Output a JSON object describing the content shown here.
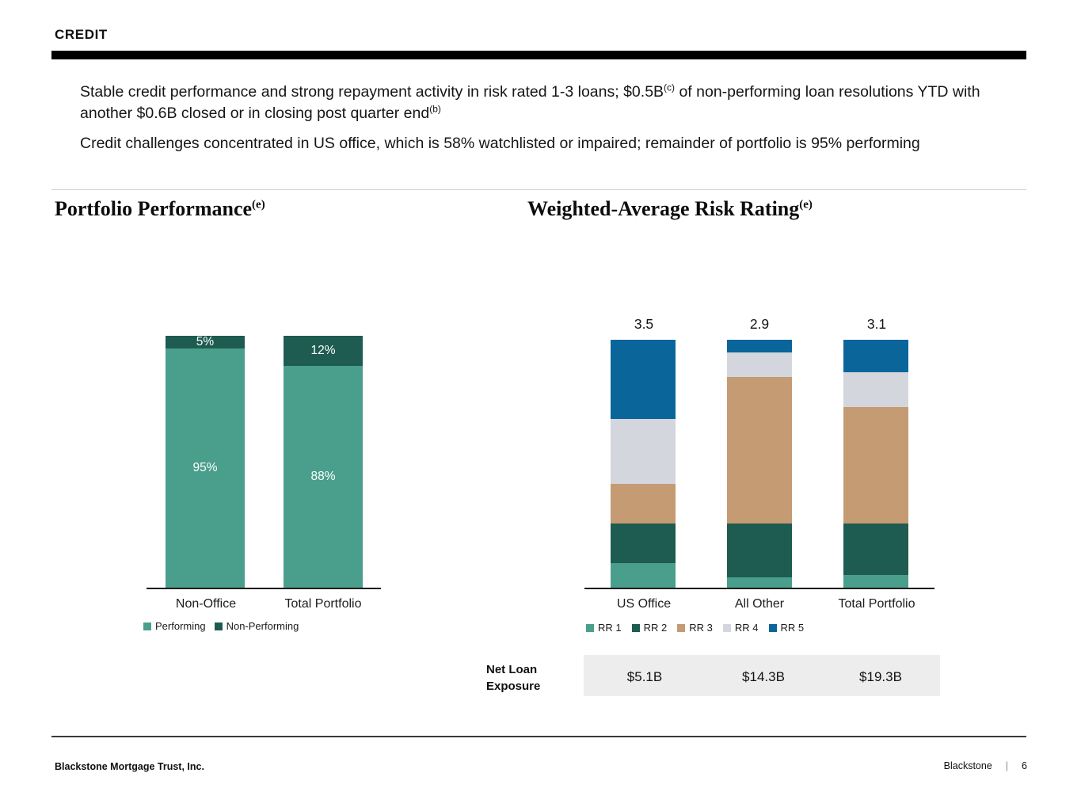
{
  "header": {
    "title": "CREDIT"
  },
  "accent_colors": {
    "bullet_square": "#AE582F",
    "teal_medium": "#4A9F8C",
    "teal_dark": "#1E5B51",
    "tan": "#C49B72",
    "gray_light": "#D3D6DC",
    "blue": "#0A659A",
    "net_loan_box_bg": "#EDEDED"
  },
  "bullets": [
    {
      "parts": [
        {
          "text": "Stable credit performance and strong repayment activity in risk rated 1-3 loans; $0.5B"
        },
        {
          "text": "(c)",
          "sup": true
        },
        {
          "text": " of non-performing loan resolutions YTD with another $0.6B closed or in closing post quarter end"
        },
        {
          "text": "(b)",
          "sup": true
        }
      ]
    },
    {
      "parts": [
        {
          "text": "Credit challenges concentrated in US office, which is 58% watchlisted or impaired; remainder of portfolio is 95% performing"
        }
      ]
    }
  ],
  "sections": {
    "left_title": "Portfolio Performance",
    "left_title_sup": "(e)",
    "right_title": "Weighted-Average Risk Rating",
    "right_title_sup": "(e)"
  },
  "chart_data": [
    {
      "type": "bar",
      "subtype": "stacked-100-percent",
      "title": "Portfolio Performance",
      "categories": [
        "Non-Office",
        "Total Portfolio"
      ],
      "series": [
        {
          "name": "Performing",
          "color": "#4A9F8C",
          "values": [
            95,
            88
          ],
          "labels": [
            "95%",
            "88%"
          ]
        },
        {
          "name": "Non-Performing",
          "color": "#1E5B51",
          "values": [
            5,
            12
          ],
          "labels": [
            "5%",
            "12%"
          ]
        }
      ],
      "unit": "%",
      "legend_position": "bottom",
      "grid": false
    },
    {
      "type": "bar",
      "subtype": "stacked-100-percent",
      "title": "Weighted-Average Risk Rating",
      "categories": [
        "US Office",
        "All Other",
        "Total Portfolio"
      ],
      "totals": [
        "3.5",
        "2.9",
        "3.1"
      ],
      "series": [
        {
          "name": "RR 1",
          "color": "#4A9F8C",
          "values": [
            10,
            4,
            5
          ]
        },
        {
          "name": "RR 2",
          "color": "#1E5B51",
          "values": [
            16,
            22,
            21
          ]
        },
        {
          "name": "RR 3",
          "color": "#C49B72",
          "values": [
            16,
            59,
            47
          ]
        },
        {
          "name": "RR 4",
          "color": "#D3D6DC",
          "values": [
            26,
            10,
            14
          ]
        },
        {
          "name": "RR 5",
          "color": "#0A659A",
          "values": [
            32,
            5,
            13
          ]
        }
      ],
      "unit": "% of portfolio (estimated from bar heights)",
      "legend_position": "bottom",
      "grid": false,
      "net_loan_exposure": {
        "label": "Net Loan Exposure",
        "values": [
          "$5.1B",
          "$14.3B",
          "$19.3B"
        ]
      }
    }
  ],
  "footer": {
    "company": "Blackstone Mortgage Trust, Inc.",
    "brand": "Blackstone",
    "separator": "|",
    "page": "6"
  }
}
